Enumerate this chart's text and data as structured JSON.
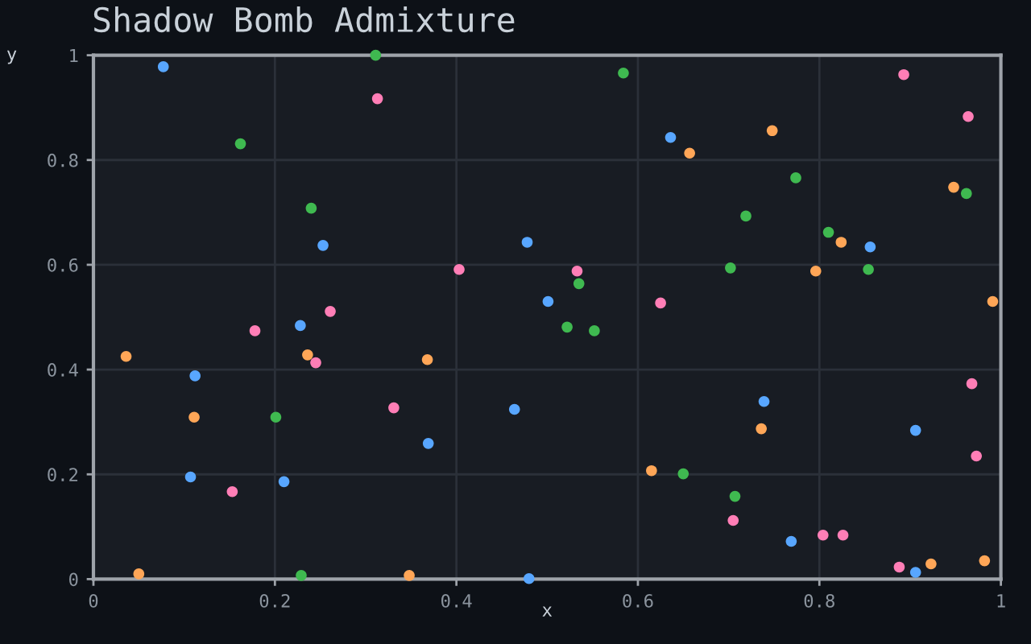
{
  "chart_data": {
    "type": "scatter",
    "title": "Shadow Bomb Admixture",
    "xlabel": "x",
    "ylabel": "y",
    "xlim": [
      0,
      1
    ],
    "ylim": [
      0,
      1
    ],
    "xticks": [
      0,
      0.2,
      0.4,
      0.6,
      0.8,
      1
    ],
    "yticks": [
      0,
      0.2,
      0.4,
      0.6,
      0.8,
      1
    ],
    "grid": true,
    "marker": "circle",
    "series": [
      {
        "color": "#58a6ff",
        "x": [
          0.077,
          0.253,
          0.478,
          0.636,
          0.856,
          0.501,
          0.228,
          0.112,
          0.107,
          0.21,
          0.369,
          0.464,
          0.48,
          0.739,
          0.906,
          0.769,
          0.906
        ],
        "values": [
          0.978,
          0.637,
          0.643,
          0.843,
          0.634,
          0.53,
          0.484,
          0.388,
          0.195,
          0.186,
          0.259,
          0.324,
          0.001,
          0.339,
          0.284,
          0.072,
          0.013
        ]
      },
      {
        "color": "#3fb950",
        "x": [
          0.162,
          0.24,
          0.311,
          0.584,
          0.774,
          0.962,
          0.719,
          0.81,
          0.854,
          0.702,
          0.535,
          0.522,
          0.552,
          0.201,
          0.229,
          0.65,
          0.707
        ],
        "values": [
          0.831,
          0.708,
          1.0,
          0.966,
          0.766,
          0.736,
          0.693,
          0.662,
          0.591,
          0.594,
          0.564,
          0.481,
          0.474,
          0.309,
          0.007,
          0.201,
          0.158
        ]
      },
      {
        "color": "#ffa657",
        "x": [
          0.748,
          0.657,
          0.948,
          0.824,
          0.796,
          0.991,
          0.036,
          0.236,
          0.368,
          0.111,
          0.05,
          0.348,
          0.736,
          0.615,
          0.923,
          0.982
        ],
        "values": [
          0.856,
          0.813,
          0.748,
          0.643,
          0.588,
          0.53,
          0.425,
          0.428,
          0.419,
          0.309,
          0.01,
          0.007,
          0.287,
          0.207,
          0.029,
          0.035
        ]
      },
      {
        "color": "#ff7eb6",
        "x": [
          0.313,
          0.403,
          0.261,
          0.893,
          0.964,
          0.533,
          0.625,
          0.178,
          0.245,
          0.331,
          0.153,
          0.968,
          0.973,
          0.705,
          0.804,
          0.826,
          0.888
        ],
        "values": [
          0.917,
          0.591,
          0.511,
          0.963,
          0.883,
          0.588,
          0.527,
          0.474,
          0.413,
          0.327,
          0.167,
          0.373,
          0.235,
          0.112,
          0.084,
          0.084,
          0.023
        ]
      }
    ]
  }
}
